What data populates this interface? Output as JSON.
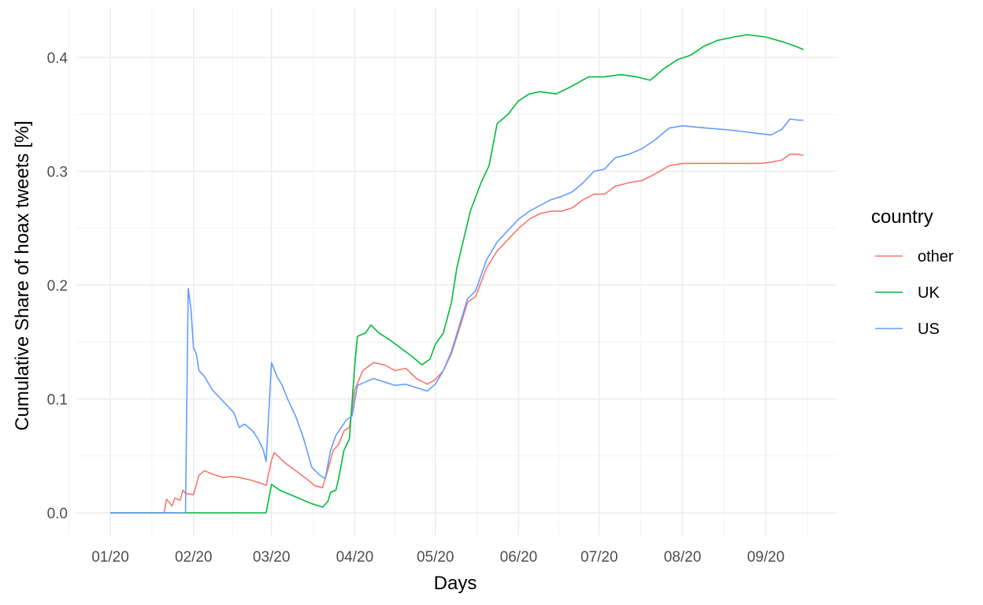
{
  "chart_data": {
    "type": "line",
    "xlabel": "Days",
    "ylabel": "Cumulative Share of hoax tweets [%]",
    "x_ticks": [
      "01/20",
      "02/20",
      "03/20",
      "04/20",
      "05/20",
      "06/20",
      "07/20",
      "08/20",
      "09/20"
    ],
    "y_ticks": [
      "0.0",
      "0.1",
      "0.2",
      "0.3",
      "0.4"
    ],
    "xlim": [
      "2020-01-01",
      "2020-09-15"
    ],
    "ylim": [
      0,
      0.43
    ],
    "grid": true,
    "legend": {
      "title": "country",
      "position": "right"
    },
    "series": [
      {
        "name": "other",
        "color": "#F8766D",
        "points": [
          [
            "2020-01-01",
            0.0
          ],
          [
            "2020-01-21",
            0.0
          ],
          [
            "2020-01-22",
            0.012
          ],
          [
            "2020-01-24",
            0.006
          ],
          [
            "2020-01-25",
            0.013
          ],
          [
            "2020-01-27",
            0.011
          ],
          [
            "2020-01-28",
            0.02
          ],
          [
            "2020-01-29",
            0.017
          ],
          [
            "2020-02-01",
            0.016
          ],
          [
            "2020-02-03",
            0.033
          ],
          [
            "2020-02-05",
            0.037
          ],
          [
            "2020-02-08",
            0.034
          ],
          [
            "2020-02-12",
            0.031
          ],
          [
            "2020-02-15",
            0.032
          ],
          [
            "2020-02-18",
            0.031
          ],
          [
            "2020-02-22",
            0.029
          ],
          [
            "2020-02-26",
            0.026
          ],
          [
            "2020-02-28",
            0.024
          ],
          [
            "2020-03-01",
            0.046
          ],
          [
            "2020-03-02",
            0.053
          ],
          [
            "2020-03-06",
            0.044
          ],
          [
            "2020-03-10",
            0.037
          ],
          [
            "2020-03-14",
            0.03
          ],
          [
            "2020-03-17",
            0.024
          ],
          [
            "2020-03-20",
            0.022
          ],
          [
            "2020-03-22",
            0.038
          ],
          [
            "2020-03-24",
            0.055
          ],
          [
            "2020-03-26",
            0.06
          ],
          [
            "2020-03-28",
            0.072
          ],
          [
            "2020-03-30",
            0.075
          ],
          [
            "2020-04-01",
            0.108
          ],
          [
            "2020-04-04",
            0.125
          ],
          [
            "2020-04-08",
            0.132
          ],
          [
            "2020-04-12",
            0.13
          ],
          [
            "2020-04-16",
            0.125
          ],
          [
            "2020-04-20",
            0.127
          ],
          [
            "2020-04-24",
            0.118
          ],
          [
            "2020-04-28",
            0.113
          ],
          [
            "2020-05-01",
            0.117
          ],
          [
            "2020-05-04",
            0.125
          ],
          [
            "2020-05-07",
            0.14
          ],
          [
            "2020-05-10",
            0.162
          ],
          [
            "2020-05-13",
            0.185
          ],
          [
            "2020-05-16",
            0.19
          ],
          [
            "2020-05-20",
            0.215
          ],
          [
            "2020-05-24",
            0.23
          ],
          [
            "2020-05-28",
            0.24
          ],
          [
            "2020-06-01",
            0.25
          ],
          [
            "2020-06-05",
            0.258
          ],
          [
            "2020-06-09",
            0.263
          ],
          [
            "2020-06-13",
            0.265
          ],
          [
            "2020-06-17",
            0.265
          ],
          [
            "2020-06-21",
            0.268
          ],
          [
            "2020-06-25",
            0.275
          ],
          [
            "2020-06-29",
            0.28
          ],
          [
            "2020-07-03",
            0.28
          ],
          [
            "2020-07-07",
            0.287
          ],
          [
            "2020-07-12",
            0.29
          ],
          [
            "2020-07-17",
            0.292
          ],
          [
            "2020-07-22",
            0.298
          ],
          [
            "2020-07-27",
            0.305
          ],
          [
            "2020-08-01",
            0.307
          ],
          [
            "2020-08-10",
            0.307
          ],
          [
            "2020-08-20",
            0.307
          ],
          [
            "2020-08-30",
            0.307
          ],
          [
            "2020-09-03",
            0.308
          ],
          [
            "2020-09-07",
            0.31
          ],
          [
            "2020-09-10",
            0.315
          ],
          [
            "2020-09-13",
            0.315
          ],
          [
            "2020-09-15",
            0.314
          ]
        ]
      },
      {
        "name": "UK",
        "color": "#00BA38",
        "points": [
          [
            "2020-01-01",
            0.0
          ],
          [
            "2020-02-28",
            0.0
          ],
          [
            "2020-03-01",
            0.025
          ],
          [
            "2020-03-04",
            0.02
          ],
          [
            "2020-03-08",
            0.016
          ],
          [
            "2020-03-12",
            0.012
          ],
          [
            "2020-03-16",
            0.008
          ],
          [
            "2020-03-20",
            0.005
          ],
          [
            "2020-03-22",
            0.01
          ],
          [
            "2020-03-23",
            0.018
          ],
          [
            "2020-03-25",
            0.02
          ],
          [
            "2020-03-26",
            0.03
          ],
          [
            "2020-03-28",
            0.055
          ],
          [
            "2020-03-30",
            0.065
          ],
          [
            "2020-04-01",
            0.13
          ],
          [
            "2020-04-02",
            0.155
          ],
          [
            "2020-04-05",
            0.158
          ],
          [
            "2020-04-07",
            0.165
          ],
          [
            "2020-04-10",
            0.158
          ],
          [
            "2020-04-14",
            0.152
          ],
          [
            "2020-04-18",
            0.145
          ],
          [
            "2020-04-22",
            0.138
          ],
          [
            "2020-04-26",
            0.13
          ],
          [
            "2020-04-29",
            0.135
          ],
          [
            "2020-05-01",
            0.148
          ],
          [
            "2020-05-04",
            0.158
          ],
          [
            "2020-05-07",
            0.185
          ],
          [
            "2020-05-09",
            0.215
          ],
          [
            "2020-05-12",
            0.245
          ],
          [
            "2020-05-14",
            0.265
          ],
          [
            "2020-05-18",
            0.29
          ],
          [
            "2020-05-21",
            0.305
          ],
          [
            "2020-05-24",
            0.342
          ],
          [
            "2020-05-28",
            0.35
          ],
          [
            "2020-06-01",
            0.362
          ],
          [
            "2020-06-05",
            0.368
          ],
          [
            "2020-06-09",
            0.37
          ],
          [
            "2020-06-15",
            0.368
          ],
          [
            "2020-06-21",
            0.375
          ],
          [
            "2020-06-27",
            0.383
          ],
          [
            "2020-07-03",
            0.383
          ],
          [
            "2020-07-09",
            0.385
          ],
          [
            "2020-07-15",
            0.383
          ],
          [
            "2020-07-20",
            0.38
          ],
          [
            "2020-07-25",
            0.39
          ],
          [
            "2020-07-30",
            0.398
          ],
          [
            "2020-08-04",
            0.402
          ],
          [
            "2020-08-09",
            0.41
          ],
          [
            "2020-08-14",
            0.415
          ],
          [
            "2020-08-20",
            0.418
          ],
          [
            "2020-08-25",
            0.42
          ],
          [
            "2020-09-01",
            0.418
          ],
          [
            "2020-09-07",
            0.414
          ],
          [
            "2020-09-12",
            0.41
          ],
          [
            "2020-09-15",
            0.407
          ]
        ]
      },
      {
        "name": "US",
        "color": "#619CFF",
        "points": [
          [
            "2020-01-01",
            0.0
          ],
          [
            "2020-01-29",
            0.0
          ],
          [
            "2020-01-30",
            0.197
          ],
          [
            "2020-01-31",
            0.18
          ],
          [
            "2020-02-01",
            0.145
          ],
          [
            "2020-02-02",
            0.14
          ],
          [
            "2020-02-03",
            0.125
          ],
          [
            "2020-02-05",
            0.12
          ],
          [
            "2020-02-08",
            0.108
          ],
          [
            "2020-02-12",
            0.098
          ],
          [
            "2020-02-16",
            0.088
          ],
          [
            "2020-02-18",
            0.075
          ],
          [
            "2020-02-20",
            0.078
          ],
          [
            "2020-02-23",
            0.072
          ],
          [
            "2020-02-25",
            0.065
          ],
          [
            "2020-02-27",
            0.055
          ],
          [
            "2020-02-28",
            0.045
          ],
          [
            "2020-03-01",
            0.132
          ],
          [
            "2020-03-03",
            0.12
          ],
          [
            "2020-03-05",
            0.112
          ],
          [
            "2020-03-07",
            0.1
          ],
          [
            "2020-03-10",
            0.085
          ],
          [
            "2020-03-13",
            0.065
          ],
          [
            "2020-03-16",
            0.04
          ],
          [
            "2020-03-19",
            0.033
          ],
          [
            "2020-03-21",
            0.03
          ],
          [
            "2020-03-23",
            0.055
          ],
          [
            "2020-03-25",
            0.068
          ],
          [
            "2020-03-27",
            0.075
          ],
          [
            "2020-03-29",
            0.082
          ],
          [
            "2020-03-31",
            0.085
          ],
          [
            "2020-04-02",
            0.112
          ],
          [
            "2020-04-05",
            0.115
          ],
          [
            "2020-04-08",
            0.118
          ],
          [
            "2020-04-12",
            0.115
          ],
          [
            "2020-04-16",
            0.112
          ],
          [
            "2020-04-20",
            0.113
          ],
          [
            "2020-04-24",
            0.11
          ],
          [
            "2020-04-28",
            0.107
          ],
          [
            "2020-05-01",
            0.113
          ],
          [
            "2020-05-04",
            0.125
          ],
          [
            "2020-05-07",
            0.142
          ],
          [
            "2020-05-10",
            0.165
          ],
          [
            "2020-05-13",
            0.188
          ],
          [
            "2020-05-16",
            0.195
          ],
          [
            "2020-05-20",
            0.222
          ],
          [
            "2020-05-24",
            0.238
          ],
          [
            "2020-05-28",
            0.248
          ],
          [
            "2020-06-01",
            0.258
          ],
          [
            "2020-06-05",
            0.265
          ],
          [
            "2020-06-09",
            0.27
          ],
          [
            "2020-06-13",
            0.275
          ],
          [
            "2020-06-17",
            0.278
          ],
          [
            "2020-06-21",
            0.282
          ],
          [
            "2020-06-25",
            0.29
          ],
          [
            "2020-06-29",
            0.3
          ],
          [
            "2020-07-03",
            0.302
          ],
          [
            "2020-07-07",
            0.312
          ],
          [
            "2020-07-12",
            0.315
          ],
          [
            "2020-07-17",
            0.32
          ],
          [
            "2020-07-22",
            0.328
          ],
          [
            "2020-07-27",
            0.338
          ],
          [
            "2020-08-01",
            0.34
          ],
          [
            "2020-08-10",
            0.338
          ],
          [
            "2020-08-20",
            0.336
          ],
          [
            "2020-08-30",
            0.333
          ],
          [
            "2020-09-03",
            0.332
          ],
          [
            "2020-09-07",
            0.337
          ],
          [
            "2020-09-10",
            0.346
          ],
          [
            "2020-09-13",
            0.345
          ],
          [
            "2020-09-15",
            0.345
          ]
        ]
      }
    ]
  }
}
